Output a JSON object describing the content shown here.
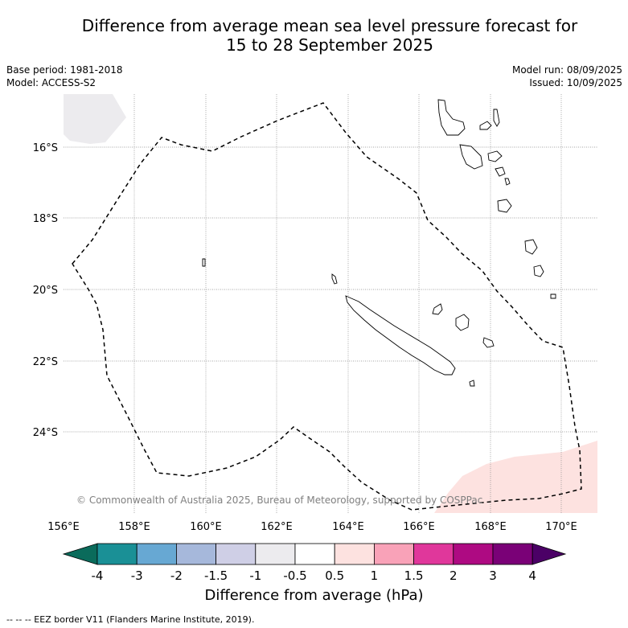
{
  "title_line1": "Difference from average mean sea level pressure forecast for",
  "title_line2": "15 to 28 September 2025",
  "base_period": "Base period: 1981-2018",
  "model": "Model: ACCESS-S2",
  "model_run": "Model run: 08/09/2025",
  "issued": "Issued: 10/09/2025",
  "copyright": "© Commonwealth of Australia 2025, Bureau of Meteorology, supported by COSPPac",
  "lat_ticks": [
    "16°S",
    "18°S",
    "20°S",
    "22°S",
    "24°S"
  ],
  "lon_ticks": [
    "156°E",
    "158°E",
    "160°E",
    "162°E",
    "164°E",
    "166°E",
    "168°E",
    "170°E"
  ],
  "colorbar": {
    "label": "Difference from average (hPa)",
    "ticks": [
      "-4",
      "-3",
      "-2",
      "-1.5",
      "-1",
      "-0.5",
      "0.5",
      "1",
      "1.5",
      "2",
      "3",
      "4"
    ],
    "colors": [
      "#1a9096",
      "#67a8d3",
      "#a6b8db",
      "#cfcfe6",
      "#ecebee",
      "#ffffff",
      "#fde2e0",
      "#f9a2b8",
      "#e0379b",
      "#ae0a82",
      "#7a0177"
    ],
    "under_color": "#0a6b5b",
    "over_color": "#4b0066"
  },
  "anomaly_colors": {
    "neg_small": "#ecebee",
    "pos_small": "#fde2e0"
  },
  "footer": "-- -- -- EEZ border V11 (Flanders Marine Institute, 2019)."
}
